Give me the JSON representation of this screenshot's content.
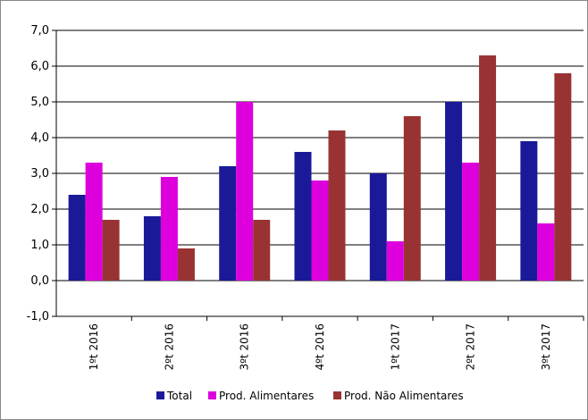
{
  "chart_data": {
    "type": "bar",
    "categories": [
      "1ºt 2016",
      "2ºt 2016",
      "3ºt 2016",
      "4ºt 2016",
      "1ºt 2017",
      "2ºt 2017",
      "3ºt 2017"
    ],
    "series": [
      {
        "name": "Total",
        "color": "#1a1a99",
        "values": [
          2.4,
          1.8,
          3.2,
          3.6,
          3.0,
          5.0,
          3.9
        ]
      },
      {
        "name": "Prod. Alimentares",
        "color": "#dd00dd",
        "values": [
          3.3,
          2.9,
          5.0,
          2.8,
          1.1,
          3.3,
          1.6
        ]
      },
      {
        "name": "Prod. Não Alimentares",
        "color": "#993333",
        "values": [
          1.7,
          0.9,
          1.7,
          4.2,
          4.6,
          6.3,
          5.8
        ]
      }
    ],
    "ylim": [
      -1.0,
      7.0
    ],
    "yticks": [
      "-1,0",
      "0,0",
      "1,0",
      "2,0",
      "3,0",
      "4,0",
      "5,0",
      "6,0",
      "7,0"
    ],
    "grid": true,
    "legend_position": "bottom"
  }
}
